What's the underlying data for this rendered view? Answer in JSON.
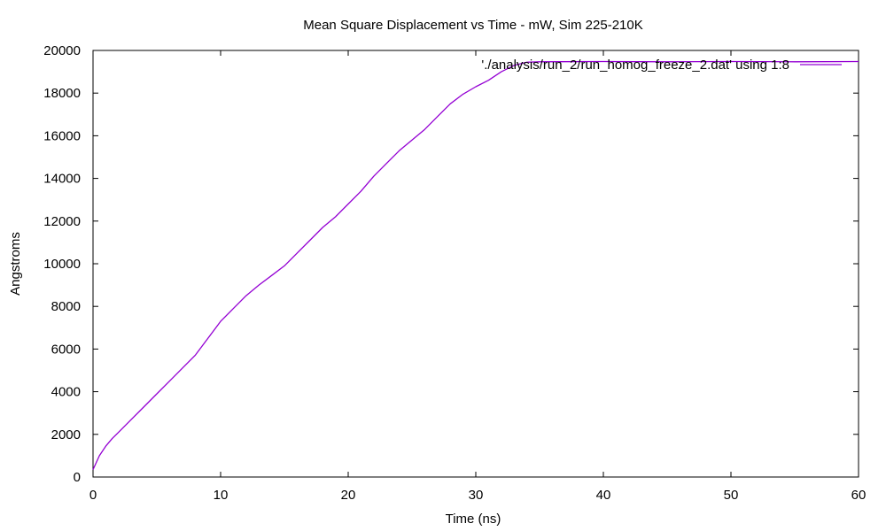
{
  "chart_data": {
    "type": "line",
    "title": "Mean Square Displacement vs Time - mW, Sim 225-210K",
    "xlabel": "Time (ns)",
    "ylabel": "Angstroms",
    "xlim": [
      0,
      60
    ],
    "ylim": [
      0,
      20000
    ],
    "x_ticks": [
      "0",
      "10",
      "20",
      "30",
      "40",
      "50",
      "60"
    ],
    "y_ticks": [
      "0",
      "2000",
      "4000",
      "6000",
      "8000",
      "10000",
      "12000",
      "14000",
      "16000",
      "18000",
      "20000"
    ],
    "grid": false,
    "legend_position": "top-right",
    "series": [
      {
        "name": "'./analysis/run_2/run_homog_freeze_2.dat' using 1:8",
        "color": "#9400d3",
        "x": [
          0,
          0.5,
          1,
          1.5,
          2,
          3,
          4,
          5,
          6,
          7,
          8,
          9,
          10,
          11,
          12,
          13,
          14,
          15,
          16,
          17,
          18,
          19,
          20,
          21,
          22,
          23,
          24,
          25,
          26,
          27,
          28,
          29,
          30,
          31,
          32,
          33,
          34,
          35,
          40,
          45,
          50,
          55,
          60
        ],
        "y": [
          350,
          1000,
          1450,
          1800,
          2100,
          2700,
          3300,
          3900,
          4500,
          5100,
          5700,
          6500,
          7300,
          7900,
          8500,
          9000,
          9450,
          9900,
          10500,
          11100,
          11700,
          12200,
          12800,
          13400,
          14100,
          14700,
          15300,
          15800,
          16300,
          16900,
          17500,
          17950,
          18300,
          18600,
          19000,
          19300,
          19450,
          19470,
          19480,
          19470,
          19480,
          19470,
          19480
        ]
      }
    ]
  }
}
